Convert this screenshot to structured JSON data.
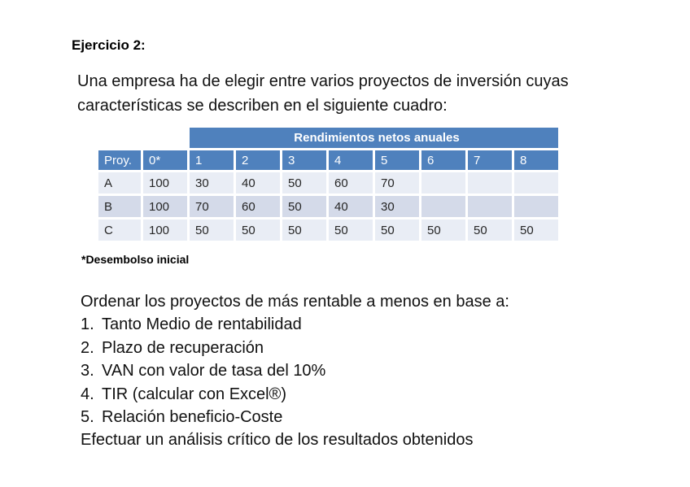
{
  "slide": {
    "title": "Ejercicio 2:",
    "intro": [
      "Una empresa ha de elegir entre varios proyectos de inversión cuyas",
      "características se describen en el siguiente cuadro:"
    ],
    "footnote": "*Desembolso inicial",
    "tasks_intro": "Ordenar los proyectos de más rentable a menos en base a:",
    "tasks": [
      {
        "num": "1.",
        "text": "Tanto Medio de rentabilidad"
      },
      {
        "num": "2.",
        "text": "Plazo de recuperación"
      },
      {
        "num": "3.",
        "text": "VAN con valor de tasa del 10%"
      },
      {
        "num": "4.",
        "text": "TIR (calcular con Excel®)"
      },
      {
        "num": "5.",
        "text": "Relación beneficio-Coste"
      }
    ],
    "tasks_outro": "Efectuar un análisis crítico de los resultados obtenidos"
  },
  "table": {
    "banner": "Rendimientos netos anuales",
    "columns": [
      "Proy.",
      "0*",
      "1",
      "2",
      "3",
      "4",
      "5",
      "6",
      "7",
      "8"
    ],
    "rows": [
      {
        "label": "A",
        "values": [
          "100",
          "30",
          "40",
          "50",
          "60",
          "70",
          "",
          "",
          ""
        ]
      },
      {
        "label": "B",
        "values": [
          "100",
          "70",
          "60",
          "50",
          "40",
          "30",
          "",
          "",
          ""
        ]
      },
      {
        "label": "C",
        "values": [
          "100",
          "50",
          "50",
          "50",
          "50",
          "50",
          "50",
          "50",
          "50"
        ]
      }
    ],
    "colors": {
      "header_blue": "#4F81BD",
      "band_light": "#E9EDF5",
      "band_dark": "#D4DAE9",
      "banner_text": "#FFFFFF"
    }
  }
}
